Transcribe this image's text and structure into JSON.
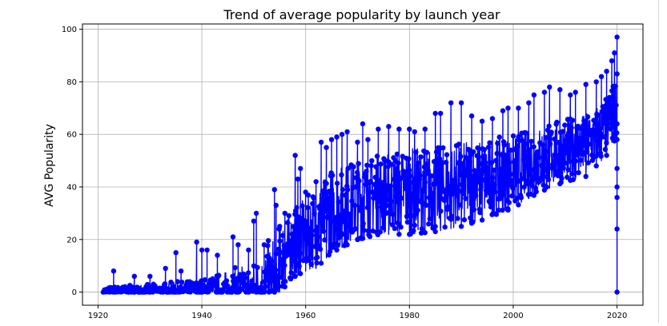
{
  "chart_data": {
    "type": "line",
    "title": "Trend of average popularity by launch year",
    "xlabel": "",
    "ylabel": "AVG Popularity",
    "xlim": [
      1917,
      2025
    ],
    "ylim": [
      -5,
      102
    ],
    "xticks": [
      1920,
      1940,
      1960,
      1980,
      2000,
      2020
    ],
    "yticks": [
      0,
      20,
      40,
      60,
      80,
      100
    ],
    "grid": true,
    "marker": "circle",
    "color": "#0000ff",
    "envelope": {
      "x": [
        1921,
        1930,
        1940,
        1950,
        1955,
        1958,
        1960,
        1962,
        1965,
        1970,
        1975,
        1980,
        1985,
        1990,
        1995,
        2000,
        2005,
        2010,
        2014,
        2016,
        2018,
        2019,
        2020
      ],
      "lower": [
        0,
        0,
        0,
        0,
        0,
        6,
        8,
        9,
        15,
        20,
        22,
        22,
        23,
        25,
        28,
        32,
        38,
        42,
        44,
        48,
        52,
        57,
        58
      ],
      "upper": [
        2,
        3,
        5,
        12,
        26,
        32,
        36,
        40,
        47,
        50,
        53,
        55,
        55,
        57,
        58,
        60,
        63,
        66,
        68,
        71,
        74,
        78,
        83
      ]
    },
    "spikes": [
      [
        1923,
        8
      ],
      [
        1927,
        6
      ],
      [
        1930,
        6
      ],
      [
        1933,
        9
      ],
      [
        1935,
        15
      ],
      [
        1936,
        8
      ],
      [
        1939,
        19
      ],
      [
        1940,
        16
      ],
      [
        1941,
        16
      ],
      [
        1943,
        14
      ],
      [
        1946,
        21
      ],
      [
        1947,
        18
      ],
      [
        1949,
        16
      ],
      [
        1950,
        27
      ],
      [
        1950.5,
        30
      ],
      [
        1952,
        18
      ],
      [
        1954,
        39
      ],
      [
        1954.3,
        33
      ],
      [
        1955,
        25
      ],
      [
        1956,
        30
      ],
      [
        1958,
        52
      ],
      [
        1958.5,
        43
      ],
      [
        1959,
        47
      ],
      [
        1960,
        38
      ],
      [
        1962,
        42
      ],
      [
        1963,
        57
      ],
      [
        1964,
        55
      ],
      [
        1965,
        58
      ],
      [
        1966,
        59
      ],
      [
        1967,
        60
      ],
      [
        1968,
        61
      ],
      [
        1970,
        57
      ],
      [
        1971,
        64
      ],
      [
        1972,
        58
      ],
      [
        1974,
        62
      ],
      [
        1976,
        63
      ],
      [
        1978,
        62
      ],
      [
        1980,
        62
      ],
      [
        1981,
        61
      ],
      [
        1983,
        62
      ],
      [
        1985,
        68
      ],
      [
        1986,
        68
      ],
      [
        1988,
        72
      ],
      [
        1990,
        72
      ],
      [
        1992,
        67
      ],
      [
        1994,
        65
      ],
      [
        1996,
        66
      ],
      [
        1998,
        69
      ],
      [
        1999,
        70
      ],
      [
        2001,
        70
      ],
      [
        2003,
        72
      ],
      [
        2004,
        75
      ],
      [
        2006,
        76
      ],
      [
        2007,
        78
      ],
      [
        2009,
        77
      ],
      [
        2011,
        75
      ],
      [
        2012,
        76
      ],
      [
        2014,
        79
      ],
      [
        2016,
        80
      ],
      [
        2017,
        82
      ],
      [
        2018,
        84
      ],
      [
        2019,
        88
      ],
      [
        2019.5,
        91
      ],
      [
        2020,
        97
      ]
    ],
    "final_drop": [
      [
        2020,
        83
      ],
      [
        2020,
        64
      ],
      [
        2020,
        47
      ],
      [
        2020,
        40
      ],
      [
        2020,
        36
      ],
      [
        2020,
        24
      ],
      [
        2020,
        0
      ]
    ]
  }
}
